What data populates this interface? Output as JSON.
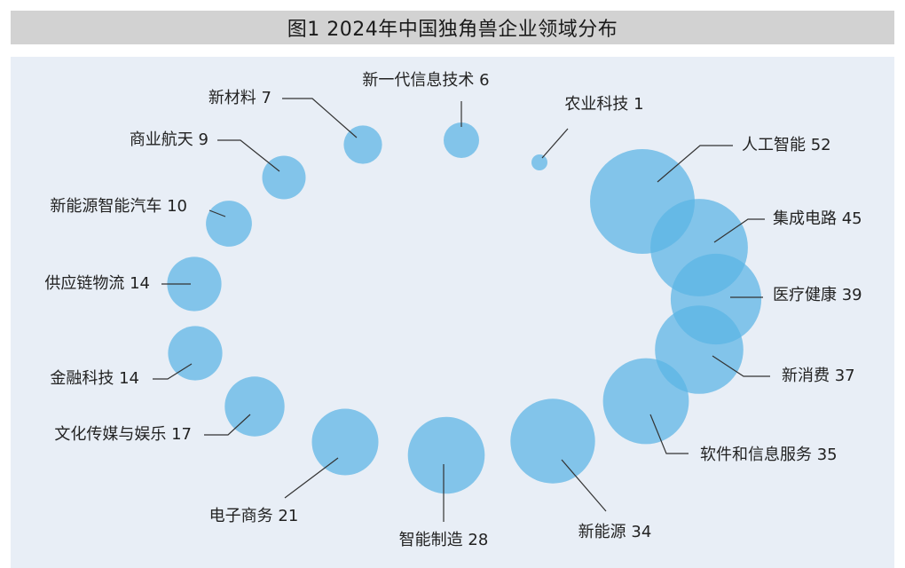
{
  "chart_data": {
    "type": "bubble",
    "title": "图1 2024年中国独角兽企业领域分布",
    "bubble_color": "#5ab4e5",
    "background_color": "#e8eef6",
    "items": [
      {
        "name": "人工智能",
        "value": 52,
        "label": "人工智能 52"
      },
      {
        "name": "集成电路",
        "value": 45,
        "label": "集成电路 45"
      },
      {
        "name": "医疗健康",
        "value": 39,
        "label": "医疗健康 39"
      },
      {
        "name": "新消费",
        "value": 37,
        "label": "新消费 37"
      },
      {
        "name": "软件和信息服务",
        "value": 35,
        "label": "软件和信息服务 35"
      },
      {
        "name": "新能源",
        "value": 34,
        "label": "新能源 34"
      },
      {
        "name": "智能制造",
        "value": 28,
        "label": "智能制造 28"
      },
      {
        "name": "电子商务",
        "value": 21,
        "label": "电子商务 21"
      },
      {
        "name": "文化传媒与娱乐",
        "value": 17,
        "label": "文化传媒与娱乐 17"
      },
      {
        "name": "金融科技",
        "value": 14,
        "label": "金融科技 14"
      },
      {
        "name": "供应链物流",
        "value": 14,
        "label": "供应链物流 14"
      },
      {
        "name": "新能源智能汽车",
        "value": 10,
        "label": "新能源智能汽车 10"
      },
      {
        "name": "商业航天",
        "value": 9,
        "label": "商业航天 9"
      },
      {
        "name": "新材料",
        "value": 7,
        "label": "新材料 7"
      },
      {
        "name": "新一代信息技术",
        "value": 6,
        "label": "新一代信息技术 6"
      },
      {
        "name": "农业科技",
        "value": 1,
        "label": "农业科技 1"
      }
    ]
  }
}
